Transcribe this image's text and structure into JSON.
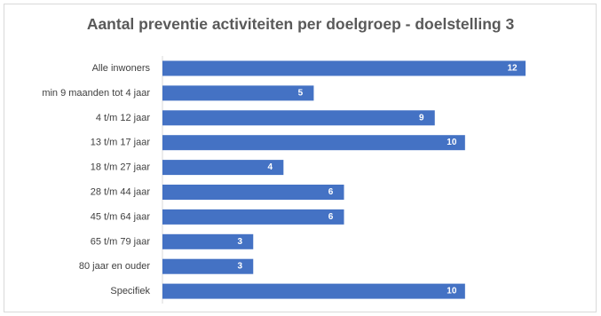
{
  "chart_data": {
    "type": "bar",
    "orientation": "horizontal",
    "title": "Aantal preventie activiteiten per doelgroep - doelstelling 3",
    "categories": [
      "Alle inwoners",
      "min 9 maanden tot 4 jaar",
      "4 t/m 12 jaar",
      "13 t/m 17 jaar",
      "18 t/m 27 jaar",
      "28 t/m 44 jaar",
      "45 t/m 64 jaar",
      "65 t/m 79 jaar",
      "80 jaar en ouder",
      "Specifiek"
    ],
    "values": [
      12,
      5,
      9,
      10,
      4,
      6,
      6,
      3,
      3,
      10
    ],
    "xlim": [
      0,
      12
    ],
    "xlabel": "",
    "ylabel": "",
    "data_labels": true,
    "grid": false,
    "legend": "none",
    "bar_color": "#4472c4",
    "label_color": "#ffffff"
  }
}
